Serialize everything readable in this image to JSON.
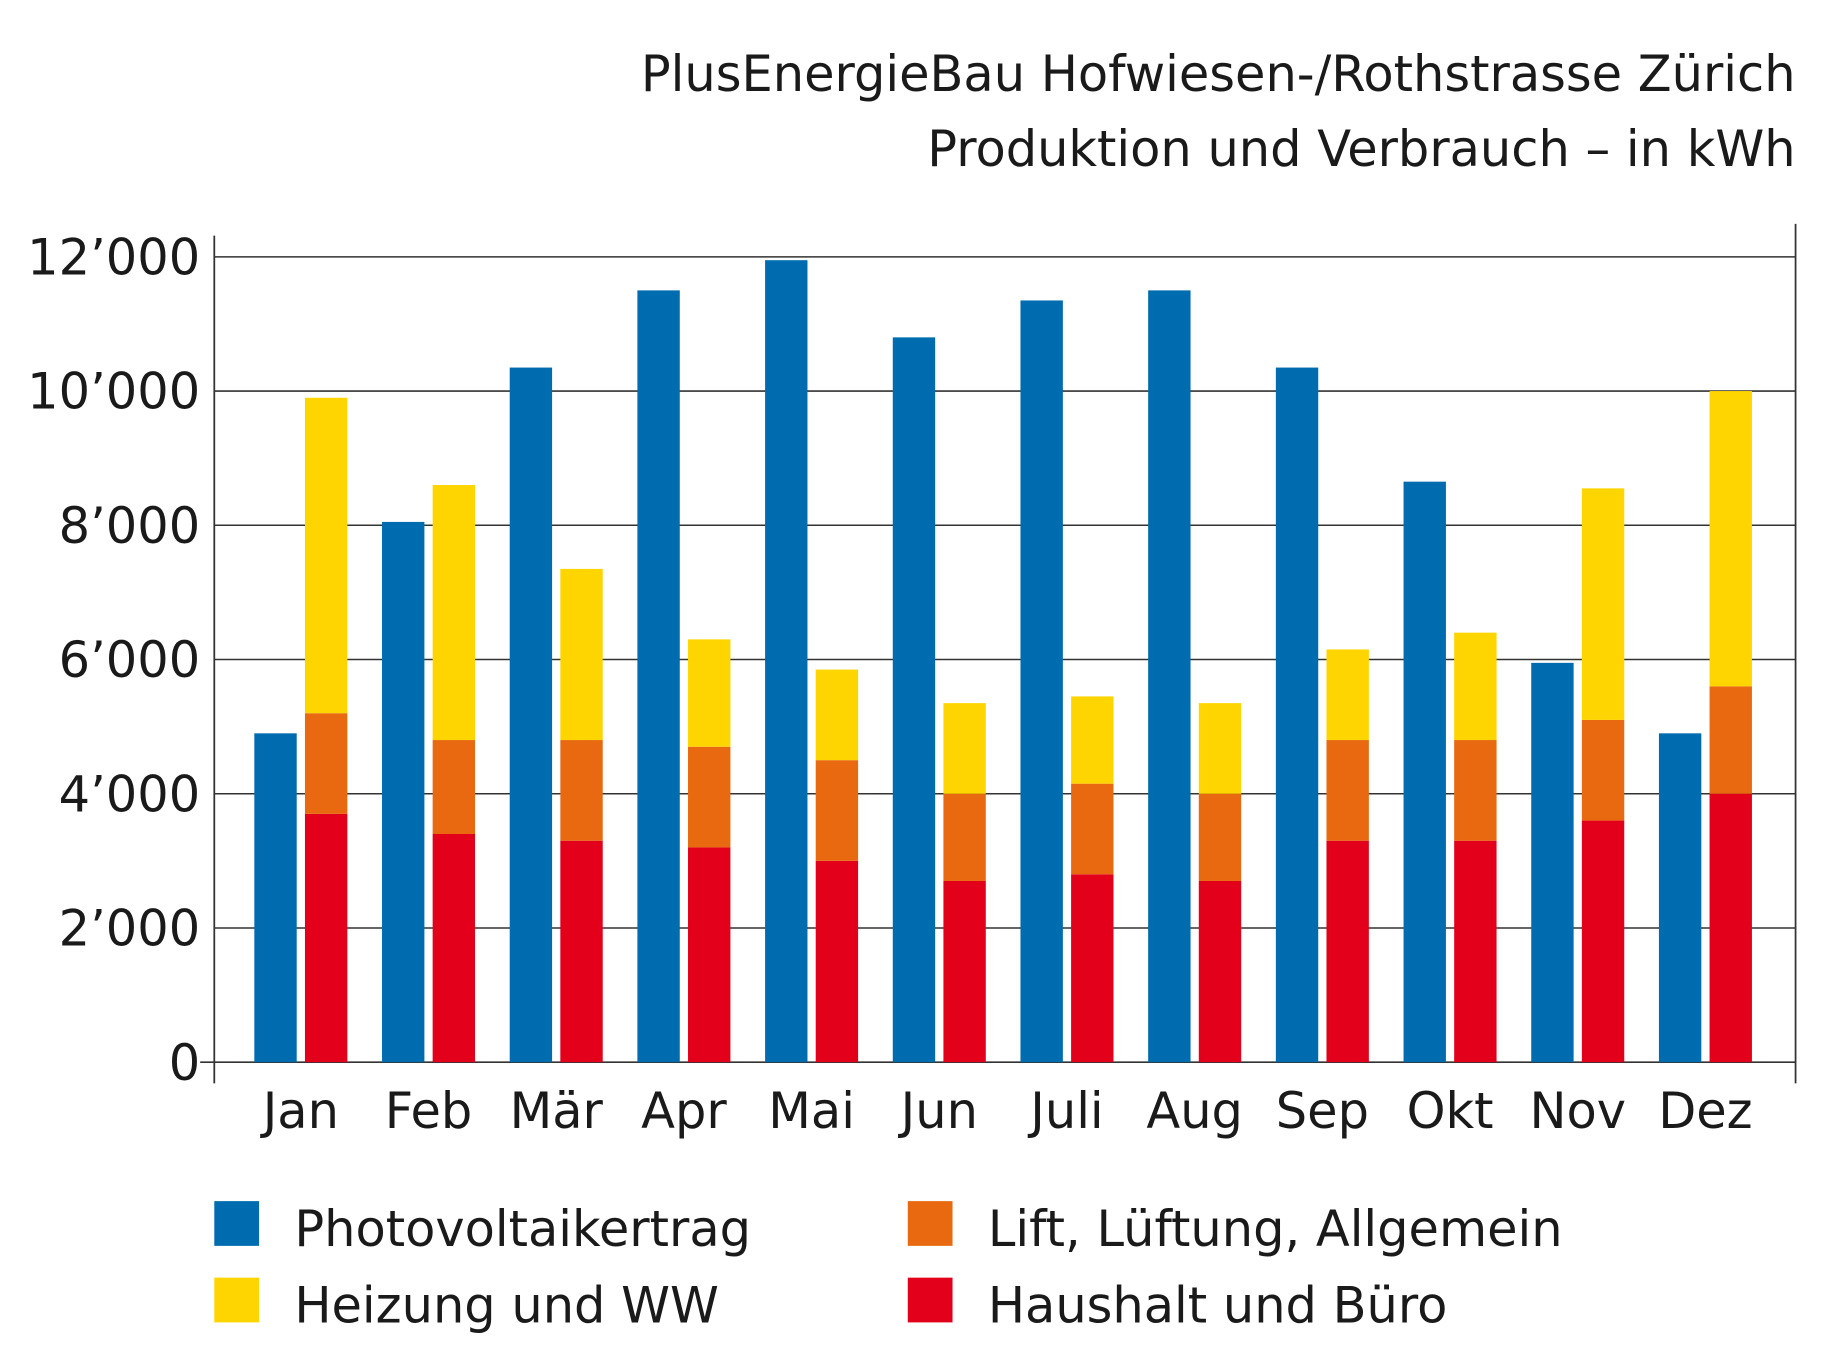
{
  "chart_data": {
    "type": "bar",
    "title": "PlusEnergieBau Hofwiesen-/Rothstrasse Zürich",
    "subtitle": "Produktion und Verbrauch – in kWh",
    "categories": [
      "Jan",
      "Feb",
      "Mär",
      "Apr",
      "Mai",
      "Jun",
      "Juli",
      "Aug",
      "Sep",
      "Okt",
      "Nov",
      "Dez"
    ],
    "ylim": [
      0,
      12000
    ],
    "yticks": [
      0,
      2000,
      4000,
      6000,
      8000,
      10000,
      12000
    ],
    "ytick_labels": [
      "0",
      "2’000",
      "4’000",
      "6’000",
      "8’000",
      "10’000",
      "12’000"
    ],
    "grid": true,
    "legend_placement": "bottom",
    "production": {
      "name": "Photovoltaikertrag",
      "color": "#006cb0",
      "values": [
        4900,
        8050,
        10350,
        11500,
        11950,
        10800,
        11350,
        11500,
        10350,
        8650,
        5950,
        4900
      ]
    },
    "consumption_stacked": [
      {
        "name": "Haushalt und Büro",
        "color": "#e2001a",
        "values": [
          3700,
          3400,
          3300,
          3200,
          3000,
          2700,
          2800,
          2700,
          3300,
          3300,
          3600,
          4000
        ]
      },
      {
        "name": "Lift, Lüftung, Allgemein",
        "color": "#e8690f",
        "values": [
          1500,
          1400,
          1500,
          1500,
          1500,
          1300,
          1350,
          1300,
          1500,
          1500,
          1500,
          1600
        ]
      },
      {
        "name": "Heizung und WW",
        "color": "#ffd500",
        "values": [
          4700,
          3800,
          2550,
          1600,
          1350,
          1350,
          1300,
          1350,
          1350,
          1600,
          3450,
          4400
        ]
      }
    ],
    "legend": [
      {
        "name": "Photovoltaikertrag",
        "color": "#006cb0"
      },
      {
        "name": "Lift, Lüftung, Allgemein",
        "color": "#e8690f"
      },
      {
        "name": "Heizung und WW",
        "color": "#ffd500"
      },
      {
        "name": "Haushalt und Büro",
        "color": "#e2001a"
      }
    ]
  }
}
